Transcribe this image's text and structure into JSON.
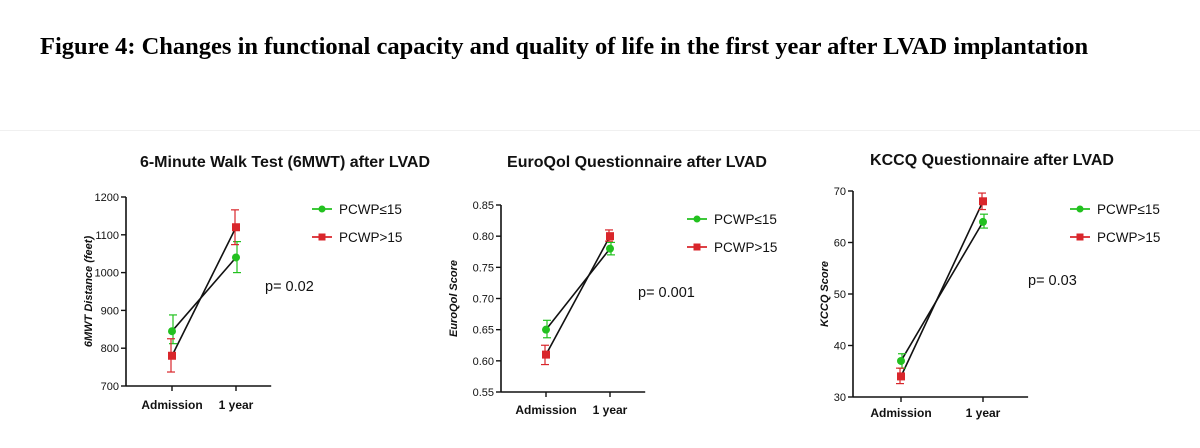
{
  "figure": {
    "title": "Figure 4: Changes in functional capacity and quality of life in the first year after LVAD implantation"
  },
  "colors": {
    "green": "#22c11f",
    "red": "#d9262b",
    "axis": "#111111"
  },
  "chart_data": [
    {
      "type": "line",
      "title": "6-Minute Walk Test (6MWT) after LVAD",
      "xlabel": "",
      "ylabel": "6MWT Distance (feet)",
      "categories": [
        "Admission",
        "1 year"
      ],
      "ylim": [
        700,
        1200
      ],
      "yticks": [
        700,
        800,
        900,
        1000,
        1100,
        1200
      ],
      "series": [
        {
          "name": "PCWP≤15",
          "color": "#22c11f",
          "marker": "circle",
          "values": [
            845,
            1040
          ],
          "error": [
            [
              812,
              888
            ],
            [
              1000,
              1082
            ]
          ]
        },
        {
          "name": "PCWP>15",
          "color": "#d9262b",
          "marker": "square",
          "values": [
            780,
            1120
          ],
          "error": [
            [
              737,
              825
            ],
            [
              1074,
              1166
            ]
          ]
        }
      ],
      "annotation": "p= 0.02",
      "legend": "top-right"
    },
    {
      "type": "line",
      "title": "EuroQol Questionnaire after LVAD",
      "xlabel": "",
      "ylabel": "EuroQol Score",
      "categories": [
        "Admission",
        "1 year"
      ],
      "ylim": [
        0.55,
        0.85
      ],
      "yticks": [
        0.55,
        0.6,
        0.65,
        0.7,
        0.75,
        0.8,
        0.85
      ],
      "ytick_labels": [
        "0.55",
        "0.60",
        "0.65",
        "0.70",
        "0.75",
        "0.80",
        "0.85"
      ],
      "series": [
        {
          "name": "PCWP≤15",
          "color": "#22c11f",
          "marker": "circle",
          "values": [
            0.65,
            0.78
          ],
          "error": [
            [
              0.637,
              0.665
            ],
            [
              0.77,
              0.79
            ]
          ]
        },
        {
          "name": "PCWP>15",
          "color": "#d9262b",
          "marker": "square",
          "values": [
            0.61,
            0.8
          ],
          "error": [
            [
              0.594,
              0.625
            ],
            [
              0.792,
              0.81
            ]
          ]
        }
      ],
      "annotation": "p= 0.001",
      "legend": "top-right"
    },
    {
      "type": "line",
      "title": "KCCQ Questionnaire after LVAD",
      "xlabel": "",
      "ylabel": "KCCQ Score",
      "categories": [
        "Admission",
        "1 year"
      ],
      "ylim": [
        30,
        70
      ],
      "yticks": [
        30,
        40,
        50,
        60,
        70
      ],
      "series": [
        {
          "name": "PCWP≤15",
          "color": "#22c11f",
          "marker": "circle",
          "values": [
            37,
            64
          ],
          "error": [
            [
              35.6,
              38.4
            ],
            [
              62.8,
              65.5
            ]
          ]
        },
        {
          "name": "PCWP>15",
          "color": "#d9262b",
          "marker": "square",
          "values": [
            34,
            68
          ],
          "error": [
            [
              32.6,
              35.6
            ],
            [
              66.4,
              69.6
            ]
          ]
        }
      ],
      "annotation": "p= 0.03",
      "legend": "top-right"
    }
  ]
}
